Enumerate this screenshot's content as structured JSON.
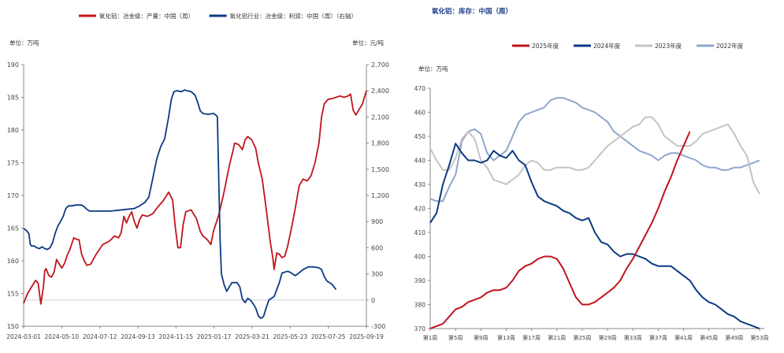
{
  "chart_data": [
    {
      "type": "line",
      "title": "",
      "legend": "top",
      "grid": false,
      "left_unit_label": "单位：万吨",
      "right_unit_label": "单位：元/吨",
      "ylim_left": [
        150,
        190
      ],
      "ylim_right": [
        -300,
        2700
      ],
      "yticks_left": [
        "150",
        "155",
        "160",
        "165",
        "170",
        "175",
        "180",
        "185",
        "190"
      ],
      "yticks_right": [
        "-300",
        "0",
        "300",
        "600",
        "900",
        "1,200",
        "1,500",
        "1,800",
        "2,100",
        "2,400",
        "2,700"
      ],
      "x_ticks": [
        "2024-03-01",
        "2024-05-10",
        "2024-07-12",
        "2024-09-13",
        "2024-11-15",
        "2025-01-17",
        "2025-03-21",
        "2025-05-23",
        "2025-07-25",
        "2025-09-19"
      ],
      "series": [
        {
          "name": "氧化铝：冶金级：产量：中国（周）",
          "axis": "left",
          "color": "#c0141c",
          "points": [
            [
              0,
              153.5
            ],
            [
              3,
              155.0
            ],
            [
              6,
              156.0
            ],
            [
              9,
              157.0
            ],
            [
              11,
              156.6
            ],
            [
              13,
              153.4
            ],
            [
              15,
              156.0
            ],
            [
              16,
              158.5
            ],
            [
              17,
              158.8
            ],
            [
              19,
              157.8
            ],
            [
              21,
              157.5
            ],
            [
              23,
              158.2
            ],
            [
              25,
              160.2
            ],
            [
              27,
              159.5
            ],
            [
              29,
              158.9
            ],
            [
              31,
              159.6
            ],
            [
              33,
              160.8
            ],
            [
              35,
              161.7
            ],
            [
              38,
              163.5
            ],
            [
              40,
              163.3
            ],
            [
              42,
              163.2
            ],
            [
              44,
              161.0
            ],
            [
              46,
              160.0
            ],
            [
              48,
              159.3
            ],
            [
              51,
              159.5
            ],
            [
              55,
              161.0
            ],
            [
              60,
              162.5
            ],
            [
              65,
              163.0
            ],
            [
              69,
              163.8
            ],
            [
              72,
              163.5
            ],
            [
              74,
              164.3
            ],
            [
              76,
              166.8
            ],
            [
              78,
              165.8
            ],
            [
              80,
              166.8
            ],
            [
              82,
              167.5
            ],
            [
              84,
              166.0
            ],
            [
              86,
              165.0
            ],
            [
              88,
              166.3
            ],
            [
              90,
              167.0
            ],
            [
              94,
              166.8
            ],
            [
              98,
              167.2
            ],
            [
              102,
              168.3
            ],
            [
              106,
              169.2
            ],
            [
              110,
              170.5
            ],
            [
              113,
              169.3
            ],
            [
              115,
              165.2
            ],
            [
              117,
              162.0
            ],
            [
              119,
              162.0
            ],
            [
              121,
              165.5
            ],
            [
              123,
              167.5
            ],
            [
              127,
              167.8
            ],
            [
              131,
              166.5
            ],
            [
              134,
              164.5
            ],
            [
              136,
              163.8
            ],
            [
              139,
              163.3
            ],
            [
              142,
              162.5
            ],
            [
              144,
              164.5
            ],
            [
              148,
              167.0
            ],
            [
              152,
              170.5
            ],
            [
              156,
              174.5
            ],
            [
              159,
              177.0
            ],
            [
              160,
              178.0
            ],
            [
              163,
              177.8
            ],
            [
              166,
              177.0
            ],
            [
              168,
              178.5
            ],
            [
              170,
              179.0
            ],
            [
              173,
              178.5
            ],
            [
              176,
              177.2
            ],
            [
              178,
              175.0
            ],
            [
              181,
              172.5
            ],
            [
              184,
              168.0
            ],
            [
              187,
              163.0
            ],
            [
              189,
              160.5
            ],
            [
              190,
              158.7
            ],
            [
              192,
              161.2
            ],
            [
              194,
              161.0
            ],
            [
              196,
              160.5
            ],
            [
              198,
              160.7
            ],
            [
              200,
              162.0
            ],
            [
              203,
              164.8
            ],
            [
              206,
              168.0
            ],
            [
              209,
              171.5
            ],
            [
              212,
              172.5
            ],
            [
              215,
              172.2
            ],
            [
              218,
              173.0
            ],
            [
              221,
              175.0
            ],
            [
              224,
              178.0
            ],
            [
              226,
              182.0
            ],
            [
              228,
              184.0
            ],
            [
              231,
              184.7
            ],
            [
              234,
              184.8
            ],
            [
              237,
              185.0
            ],
            [
              240,
              185.2
            ],
            [
              243,
              185.0
            ],
            [
              246,
              185.2
            ],
            [
              248,
              185.5
            ],
            [
              250,
              183.0
            ],
            [
              252,
              182.3
            ],
            [
              254,
              183.0
            ],
            [
              257,
              184.0
            ],
            [
              260,
              186.0
            ]
          ]
        },
        {
          "name": "氧化铝行业：冶金级：利润：中国（周）（右轴）",
          "axis": "right",
          "color": "#0b3a82",
          "points": [
            [
              0,
              820
            ],
            [
              2,
              800
            ],
            [
              4,
              760
            ],
            [
              5,
              640
            ],
            [
              6,
              620
            ],
            [
              8,
              620
            ],
            [
              10,
              600
            ],
            [
              12,
              590
            ],
            [
              14,
              610
            ],
            [
              16,
              590
            ],
            [
              18,
              580
            ],
            [
              20,
              600
            ],
            [
              22,
              660
            ],
            [
              24,
              770
            ],
            [
              26,
              850
            ],
            [
              28,
              900
            ],
            [
              30,
              960
            ],
            [
              32,
              1050
            ],
            [
              34,
              1080
            ],
            [
              36,
              1080
            ],
            [
              40,
              1090
            ],
            [
              44,
              1090
            ],
            [
              46,
              1070
            ],
            [
              48,
              1040
            ],
            [
              50,
              1020
            ],
            [
              54,
              1020
            ],
            [
              60,
              1020
            ],
            [
              66,
              1020
            ],
            [
              72,
              1030
            ],
            [
              78,
              1040
            ],
            [
              84,
              1050
            ],
            [
              88,
              1080
            ],
            [
              92,
              1120
            ],
            [
              95,
              1180
            ],
            [
              98,
              1400
            ],
            [
              101,
              1620
            ],
            [
              104,
              1760
            ],
            [
              107,
              1850
            ],
            [
              110,
              2100
            ],
            [
              112,
              2300
            ],
            [
              114,
              2390
            ],
            [
              116,
              2400
            ],
            [
              120,
              2390
            ],
            [
              122,
              2410
            ],
            [
              124,
              2400
            ],
            [
              127,
              2390
            ],
            [
              130,
              2350
            ],
            [
              132,
              2270
            ],
            [
              134,
              2170
            ],
            [
              136,
              2140
            ],
            [
              140,
              2130
            ],
            [
              144,
              2140
            ],
            [
              146,
              2120
            ],
            [
              147,
              2100
            ],
            [
              148,
              1400
            ],
            [
              149,
              700
            ],
            [
              150,
              300
            ],
            [
              152,
              180
            ],
            [
              154,
              100
            ],
            [
              156,
              150
            ],
            [
              158,
              200
            ],
            [
              162,
              200
            ],
            [
              164,
              150
            ],
            [
              166,
              10
            ],
            [
              168,
              -30
            ],
            [
              170,
              20
            ],
            [
              172,
              0
            ],
            [
              174,
              -40
            ],
            [
              176,
              -90
            ],
            [
              178,
              -180
            ],
            [
              180,
              -210
            ],
            [
              182,
              -190
            ],
            [
              184,
              -90
            ],
            [
              186,
              0
            ],
            [
              190,
              40
            ],
            [
              192,
              120
            ],
            [
              194,
              200
            ],
            [
              196,
              310
            ],
            [
              200,
              330
            ],
            [
              202,
              320
            ],
            [
              204,
              300
            ],
            [
              206,
              280
            ],
            [
              208,
              300
            ],
            [
              212,
              350
            ],
            [
              216,
              380
            ],
            [
              220,
              380
            ],
            [
              224,
              370
            ],
            [
              226,
              350
            ],
            [
              228,
              270
            ],
            [
              230,
              220
            ],
            [
              232,
              200
            ],
            [
              234,
              180
            ],
            [
              236,
              140
            ],
            [
              237,
              120
            ]
          ]
        }
      ]
    },
    {
      "type": "line",
      "title": "氧化铝：库存：中国（周）",
      "legend": "top",
      "grid": false,
      "unit_label": "单位：万吨",
      "ylim": [
        370,
        470
      ],
      "yticks": [
        "370",
        "380",
        "390",
        "400",
        "410",
        "420",
        "430",
        "440",
        "450",
        "460",
        "470"
      ],
      "x_ticks": [
        "第1周",
        "第5周",
        "第9周",
        "第13周",
        "第17周",
        "第21周",
        "第25周",
        "第29周",
        "第33周",
        "第37周",
        "第41周",
        "第45周",
        "第49周",
        "第53周"
      ],
      "series": [
        {
          "name": "2025年度",
          "color": "#c0141c",
          "values": [
            370,
            371,
            372,
            375,
            378,
            379,
            381,
            382,
            383,
            385,
            386,
            386,
            387,
            390,
            394,
            396,
            397,
            399,
            400,
            400,
            399,
            395,
            389,
            383,
            380,
            380,
            381,
            383,
            385,
            387,
            390,
            395,
            399,
            404,
            409,
            414,
            420,
            427,
            433,
            440,
            446,
            452
          ]
        },
        {
          "name": "2024年度",
          "color": "#0b3a82",
          "values": [
            414,
            418,
            430,
            438,
            447,
            443,
            440,
            440,
            439,
            440,
            444,
            442,
            441,
            444,
            440,
            438,
            431,
            425,
            423,
            422,
            421,
            419,
            418,
            416,
            415,
            416,
            410,
            406,
            405,
            402,
            400,
            401,
            401,
            400,
            399,
            397,
            396,
            396,
            396,
            394,
            392,
            390,
            386,
            383,
            381,
            380,
            378,
            376,
            375,
            373,
            372,
            371,
            370
          ]
        },
        {
          "name": "2023年度",
          "color": "#c4c4c4",
          "values": [
            445,
            440,
            436,
            436,
            441,
            449,
            452,
            449,
            440,
            437,
            432,
            431,
            430,
            432,
            434,
            438,
            440,
            439,
            436,
            436,
            437,
            437,
            437,
            436,
            436,
            437,
            440,
            443,
            446,
            448,
            450,
            452,
            454,
            455,
            458,
            458,
            455,
            450,
            448,
            446,
            446,
            446,
            448,
            451,
            452,
            453,
            454,
            455,
            451,
            446,
            442,
            431,
            426
          ]
        },
        {
          "name": "2022年度",
          "color": "#8ea6cc",
          "values": [
            424,
            423,
            423,
            429,
            434,
            448,
            452,
            453,
            451,
            443,
            440,
            442,
            444,
            450,
            456,
            459,
            460,
            461,
            462,
            465,
            466,
            466,
            465,
            464,
            462,
            461,
            460,
            458,
            456,
            452,
            450,
            448,
            446,
            444,
            443,
            442,
            440,
            442,
            443,
            443,
            442,
            441,
            440,
            438,
            437,
            437,
            436,
            436,
            437,
            437,
            438,
            439,
            440
          ]
        }
      ]
    }
  ]
}
